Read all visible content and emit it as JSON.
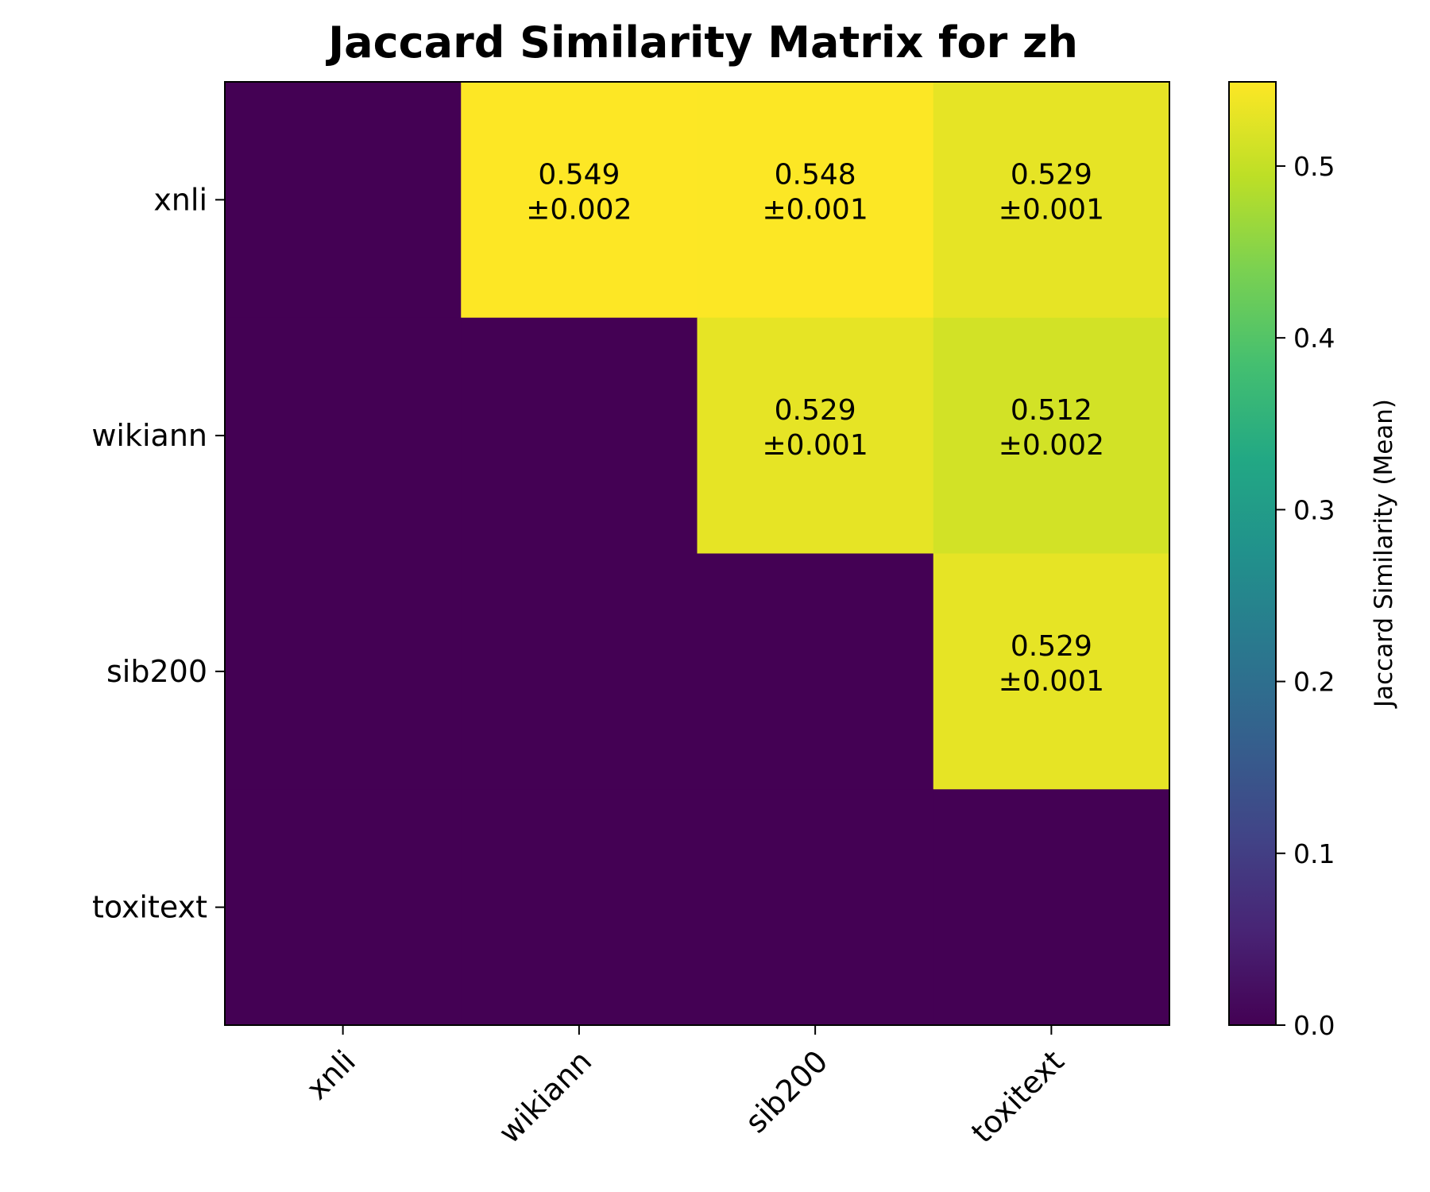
{
  "chart_data": {
    "type": "heatmap",
    "title": "Jaccard Similarity Matrix for zh",
    "x_categories": [
      "xnli",
      "wikiann",
      "sib200",
      "toxitext"
    ],
    "y_categories": [
      "xnli",
      "wikiann",
      "sib200",
      "toxitext"
    ],
    "values": [
      [
        0,
        0.549,
        0.548,
        0.529
      ],
      [
        0,
        0,
        0.529,
        0.512
      ],
      [
        0,
        0,
        0,
        0.529
      ],
      [
        0,
        0,
        0,
        0
      ]
    ],
    "labels": [
      [
        null,
        "0.549\n±0.002",
        "0.548\n±0.001",
        "0.529\n±0.001"
      ],
      [
        null,
        null,
        "0.529\n±0.001",
        "0.512\n±0.002"
      ],
      [
        null,
        null,
        null,
        "0.529\n±0.001"
      ],
      [
        null,
        null,
        null,
        null
      ]
    ],
    "colormap": "viridis",
    "colorbar": {
      "label": "Jaccard Similarity (Mean)",
      "range": [
        0,
        0.549
      ],
      "ticks": [
        "0.0",
        "0.1",
        "0.2",
        "0.3",
        "0.4",
        "0.5"
      ]
    }
  }
}
